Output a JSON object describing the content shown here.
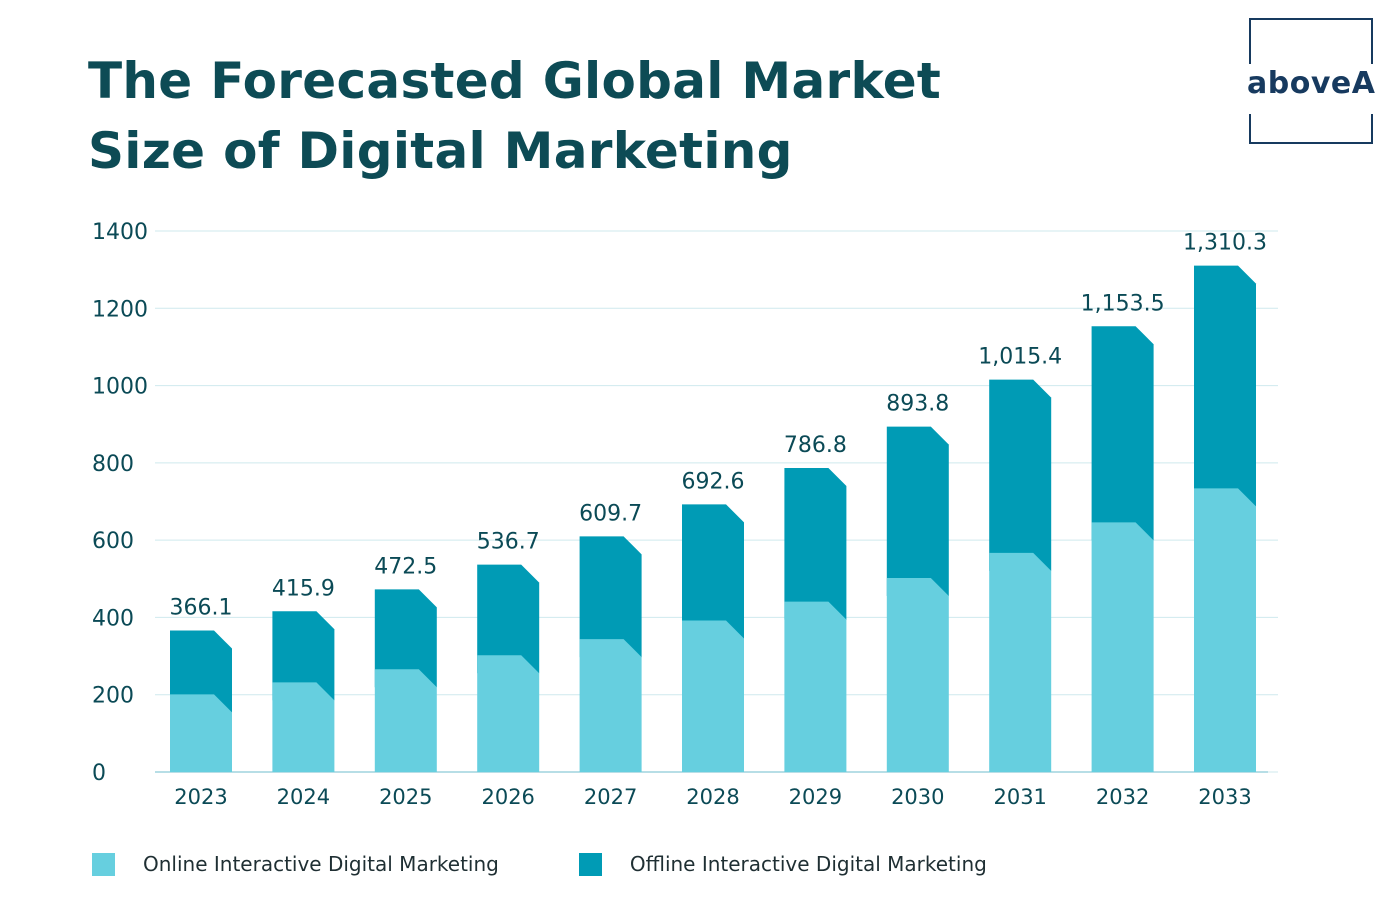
{
  "title": {
    "line1": "The Forecasted Global Market",
    "line2": "Size of Digital Marketing"
  },
  "logo": {
    "text": "aboveA"
  },
  "colors": {
    "title": "#0d4b55",
    "online": "#66cfdf",
    "offline": "#009bb5",
    "grid": "#cfe9ee",
    "axis_text": "#0b4a56"
  },
  "legend": {
    "online_label": "Online Interactive Digital Marketing",
    "offline_label": "Offline Interactive Digital Marketing"
  },
  "chart_data": {
    "type": "bar",
    "stacked": true,
    "title": "The Forecasted Global Market Size of Digital Marketing",
    "categories": [
      "2023",
      "2024",
      "2025",
      "2026",
      "2027",
      "2028",
      "2029",
      "2030",
      "2031",
      "2032",
      "2033"
    ],
    "series": [
      {
        "name": "Online Interactive Digital Marketing",
        "values": [
          201,
          232,
          266,
          302,
          344,
          392,
          441,
          502,
          567,
          646,
          734
        ]
      },
      {
        "name": "Offline Interactive Digital Marketing",
        "values": [
          165.1,
          183.9,
          206.5,
          234.7,
          265.7,
          300.6,
          345.8,
          391.8,
          448.4,
          507.5,
          576.3
        ]
      }
    ],
    "totals": [
      366.1,
      415.9,
      472.5,
      536.7,
      609.7,
      692.6,
      786.8,
      893.8,
      1015.4,
      1153.5,
      1310.3
    ],
    "total_labels": [
      "366.1",
      "415.9",
      "472.5",
      "536.7",
      "609.7",
      "692.6",
      "786.8",
      "893.8",
      "1,015.4",
      "1,153.5",
      "1,310.3"
    ],
    "yticks": [
      0,
      200,
      400,
      600,
      800,
      1000,
      1200,
      1400
    ],
    "ytick_labels": [
      "0",
      "200",
      "400",
      "600",
      "800",
      "1000",
      "1200",
      "1400"
    ],
    "ylim": [
      0,
      1400
    ],
    "xlabel": "",
    "ylabel": "",
    "grid": true,
    "legend_position": "bottom-left"
  }
}
